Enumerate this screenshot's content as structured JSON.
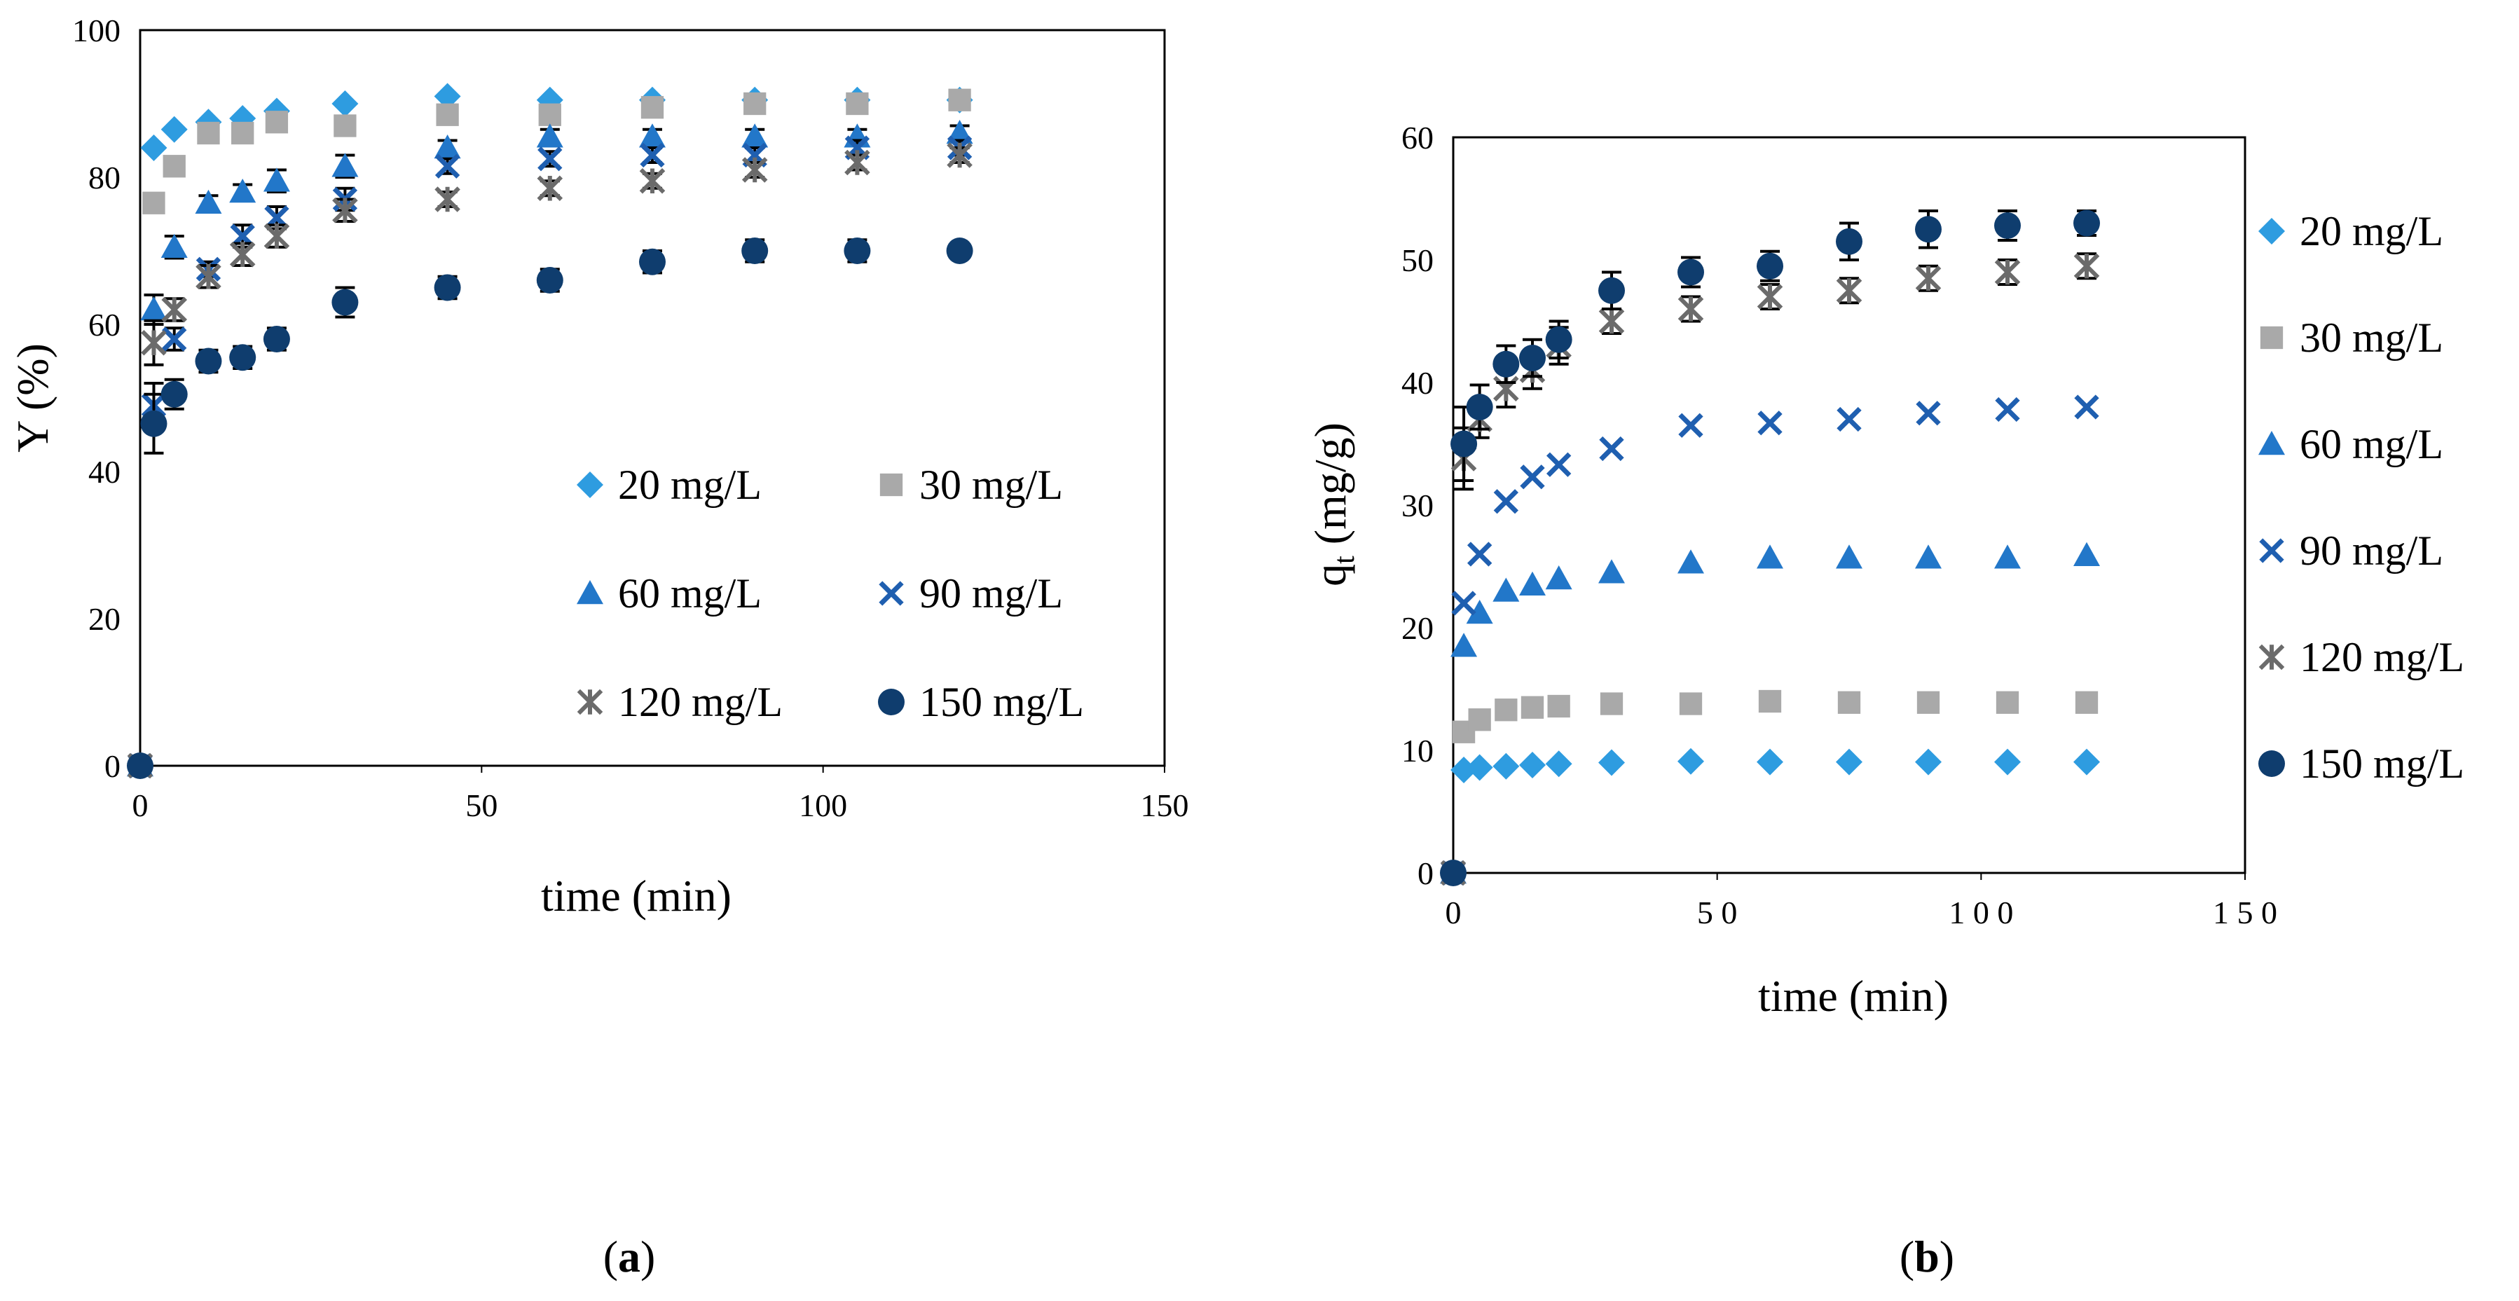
{
  "colors": {
    "s20": "#2e9ce0",
    "s30": "#a9a9a9",
    "s60": "#2277c9",
    "s90": "#1f5fb0",
    "s120": "#6b6b6b",
    "s150": "#0f3d6e"
  },
  "chart_data": [
    {
      "panel": "a",
      "panel_label_open": "(",
      "panel_label_letter": "a",
      "panel_label_close": ")",
      "type": "scatter",
      "title": "",
      "xlabel": "time (min)",
      "ylabel": "Y (%)",
      "xlim": [
        0,
        150
      ],
      "ylim": [
        0,
        100
      ],
      "xticks": [
        "0",
        "50",
        "100",
        "150"
      ],
      "yticks": [
        "0",
        "20",
        "40",
        "60",
        "80",
        "100"
      ],
      "legend_position": "inside-bottom-right",
      "x": [
        0,
        2,
        5,
        10,
        15,
        20,
        30,
        45,
        60,
        75,
        90,
        105,
        120
      ],
      "series": [
        {
          "name": "20 mg/L",
          "marker": "diamond",
          "color_key": "s20",
          "values": [
            0,
            84,
            86.5,
            87.5,
            88,
            89,
            90,
            91,
            90.5,
            90.5,
            90.5,
            90.5,
            90.5
          ],
          "errors": [
            0,
            0,
            0,
            0,
            0,
            0,
            0,
            0,
            0,
            0,
            0,
            0,
            0
          ]
        },
        {
          "name": "30 mg/L",
          "marker": "square",
          "color_key": "s30",
          "values": [
            0,
            76.5,
            81.5,
            86,
            86,
            87.5,
            87,
            88.5,
            88.5,
            89.5,
            90,
            90,
            90.5
          ],
          "errors": [
            0,
            0,
            0,
            0,
            0,
            0,
            0,
            0,
            0,
            0,
            0,
            0,
            0
          ]
        },
        {
          "name": "60 mg/L",
          "marker": "triangle",
          "color_key": "s60",
          "values": [
            0,
            62,
            70.5,
            76.5,
            78,
            79.5,
            81.5,
            84,
            85.5,
            85.5,
            85.5,
            85.5,
            86
          ],
          "errors": [
            0,
            2,
            1.5,
            1,
            1,
            1.5,
            1.5,
            1,
            1,
            1,
            1,
            1,
            1
          ]
        },
        {
          "name": "90 mg/L",
          "marker": "x",
          "color_key": "s90",
          "values": [
            0,
            49,
            58,
            67.5,
            72,
            74.5,
            77,
            81.5,
            82.5,
            83,
            83,
            84,
            84
          ],
          "errors": [
            0,
            3,
            1.5,
            1,
            1.5,
            1.5,
            1.5,
            1,
            1,
            1,
            1,
            1,
            1
          ]
        },
        {
          "name": "120 mg/L",
          "marker": "star",
          "color_key": "s120",
          "values": [
            0,
            57.5,
            62,
            66.5,
            69.5,
            72,
            75.5,
            77,
            78.5,
            79.5,
            81,
            82,
            83
          ],
          "errors": [
            0,
            3,
            1.5,
            1.5,
            1.5,
            1.5,
            1.5,
            1,
            1,
            1,
            1,
            1,
            1
          ]
        },
        {
          "name": "150 mg/L",
          "marker": "circle",
          "color_key": "s150",
          "values": [
            0,
            46.5,
            50.5,
            55,
            55.5,
            58,
            63,
            65,
            66,
            68.5,
            70,
            70,
            70
          ],
          "errors": [
            0,
            4,
            2,
            1.5,
            1.5,
            1.5,
            2,
            1.5,
            1.5,
            1.5,
            1.5,
            1.5,
            1
          ]
        }
      ]
    },
    {
      "panel": "b",
      "panel_label_open": "(",
      "panel_label_letter": "b",
      "panel_label_close": ")",
      "type": "scatter",
      "title": "",
      "xlabel": "time (min)",
      "ylabel_main": "q",
      "ylabel_sub": "t",
      "ylabel_rest": " (mg/g)",
      "xlim": [
        0,
        150
      ],
      "ylim": [
        0,
        60
      ],
      "xticks": [
        "0",
        "5 0",
        "1 0 0",
        "1 5 0"
      ],
      "yticks": [
        "0",
        "10",
        "20",
        "30",
        "40",
        "50",
        "60"
      ],
      "legend_position": "outside-right",
      "x": [
        0,
        2,
        5,
        10,
        15,
        20,
        30,
        45,
        60,
        75,
        90,
        105,
        120
      ],
      "series": [
        {
          "name": "20 mg/L",
          "marker": "diamond",
          "color_key": "s20",
          "values": [
            0,
            8.4,
            8.6,
            8.7,
            8.8,
            8.9,
            9.0,
            9.1,
            9.05,
            9.05,
            9.05,
            9.05,
            9.05
          ],
          "errors": [
            0,
            0,
            0,
            0,
            0,
            0,
            0,
            0,
            0,
            0,
            0,
            0,
            0
          ]
        },
        {
          "name": "30 mg/L",
          "marker": "square",
          "color_key": "s30",
          "values": [
            0,
            11.5,
            12.5,
            13.3,
            13.5,
            13.6,
            13.8,
            13.8,
            14.0,
            13.9,
            13.9,
            13.9,
            13.9
          ],
          "errors": [
            0,
            0,
            0,
            0,
            0,
            0,
            0,
            0,
            0,
            0,
            0,
            0,
            0
          ]
        },
        {
          "name": "60 mg/L",
          "marker": "triangle",
          "color_key": "s60",
          "values": [
            0,
            18.5,
            21.2,
            23.0,
            23.5,
            24.0,
            24.5,
            25.3,
            25.7,
            25.7,
            25.7,
            25.7,
            25.9
          ],
          "errors": [
            0,
            0,
            0,
            0,
            0,
            0,
            0,
            0,
            0,
            0,
            0,
            0,
            0
          ]
        },
        {
          "name": "90 mg/L",
          "marker": "x",
          "color_key": "s90",
          "values": [
            0,
            22.0,
            26.0,
            30.3,
            32.3,
            33.3,
            34.6,
            36.5,
            36.7,
            37.0,
            37.5,
            37.8,
            38.0
          ],
          "errors": [
            0,
            0,
            0,
            0,
            0,
            0,
            0,
            0,
            0,
            0,
            0,
            0,
            0
          ]
        },
        {
          "name": "120 mg/L",
          "marker": "star",
          "color_key": "s120",
          "values": [
            0,
            33.8,
            37.0,
            39.5,
            41.0,
            43.0,
            45.0,
            46.0,
            47.0,
            47.5,
            48.5,
            49.0,
            49.5
          ],
          "errors": [
            0,
            2.5,
            1.5,
            1.5,
            1.5,
            1.5,
            1,
            1,
            1,
            1,
            1,
            1,
            1
          ]
        },
        {
          "name": "150 mg/L",
          "marker": "circle",
          "color_key": "s150",
          "values": [
            0,
            35.0,
            38.0,
            41.5,
            42.0,
            43.5,
            47.5,
            49.0,
            49.5,
            51.5,
            52.5,
            52.8,
            53.0
          ],
          "errors": [
            0,
            3,
            1.8,
            1.5,
            1.5,
            1.5,
            1.5,
            1.2,
            1.2,
            1.5,
            1.5,
            1.2,
            1
          ]
        }
      ]
    }
  ]
}
